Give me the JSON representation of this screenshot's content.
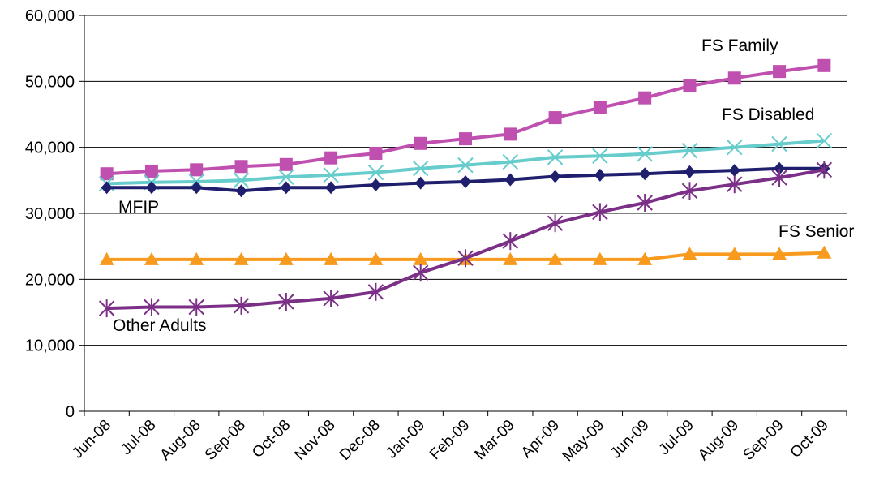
{
  "chart_data": {
    "type": "line",
    "title": "",
    "xlabel": "",
    "ylabel": "",
    "ylim": [
      0,
      60000
    ],
    "yticks": [
      0,
      10000,
      20000,
      30000,
      40000,
      50000,
      60000
    ],
    "ytick_labels": [
      "0",
      "10,000",
      "20,000",
      "30,000",
      "40,000",
      "50,000",
      "60,000"
    ],
    "grid": "horizontal",
    "legend": "none (series labeled inline)",
    "categories": [
      "Jun-08",
      "Jul-08",
      "Aug-08",
      "Sep-08",
      "Oct-08",
      "Nov-08",
      "Dec-08",
      "Jan-09",
      "Feb-09",
      "Mar-09",
      "Apr-09",
      "May-09",
      "Jun-09",
      "Jul-09",
      "Aug-09",
      "Sep-09",
      "Oct-09"
    ],
    "series": [
      {
        "name": "FS Family",
        "color": "#C050B0",
        "marker": "square",
        "values": [
          36000,
          36400,
          36600,
          37100,
          37400,
          38400,
          39100,
          40600,
          41300,
          42000,
          44500,
          46000,
          47500,
          49300,
          50500,
          51500,
          52400
        ]
      },
      {
        "name": "FS Disabled",
        "color": "#66CCCC",
        "marker": "x",
        "values": [
          34500,
          34700,
          34800,
          35000,
          35500,
          35800,
          36200,
          36800,
          37300,
          37800,
          38500,
          38700,
          39000,
          39500,
          40000,
          40500,
          41000
        ]
      },
      {
        "name": "MFIP",
        "color": "#1F1F6E",
        "marker": "diamond",
        "values": [
          33900,
          33900,
          33900,
          33400,
          33900,
          33900,
          34300,
          34600,
          34800,
          35100,
          35600,
          35800,
          36000,
          36300,
          36500,
          36800,
          36800
        ]
      },
      {
        "name": "FS Senior",
        "color": "#F79A1E",
        "marker": "triangle",
        "values": [
          23000,
          23000,
          23000,
          23000,
          23000,
          23000,
          23000,
          23000,
          23000,
          23000,
          23000,
          23000,
          23000,
          23800,
          23800,
          23800,
          24000
        ]
      },
      {
        "name": "Other Adults",
        "color": "#7B2F86",
        "marker": "star",
        "values": [
          15600,
          15800,
          15800,
          16000,
          16600,
          17100,
          18100,
          21000,
          23200,
          25800,
          28500,
          30200,
          31600,
          33400,
          34400,
          35400,
          36600
        ]
      }
    ]
  }
}
